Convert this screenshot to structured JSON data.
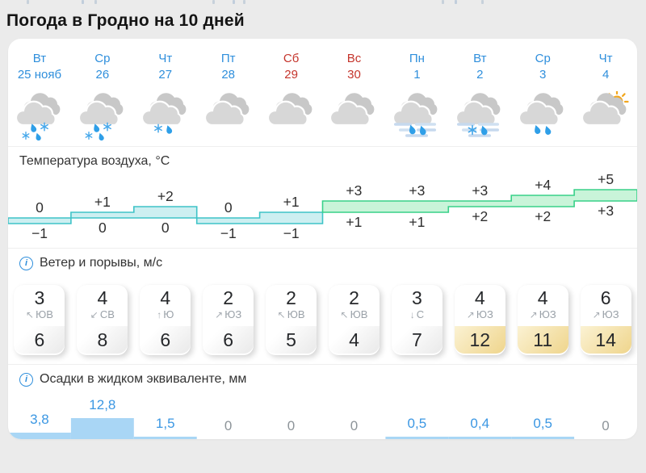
{
  "page": {
    "title": "Погода в Гродно на 10 дней"
  },
  "ui": {
    "info_glyph": "i"
  },
  "columns": [
    {
      "day": "Вт",
      "date": "25 нояб",
      "weekend": false,
      "icon": "cloud-rain-snow"
    },
    {
      "day": "Ср",
      "date": "26",
      "weekend": false,
      "icon": "cloud-rain-snow"
    },
    {
      "day": "Чт",
      "date": "27",
      "weekend": false,
      "icon": "cloud-snow-rain-light"
    },
    {
      "day": "Пт",
      "date": "28",
      "weekend": false,
      "icon": "cloudy"
    },
    {
      "day": "Сб",
      "date": "29",
      "weekend": true,
      "icon": "cloudy"
    },
    {
      "day": "Вс",
      "date": "30",
      "weekend": true,
      "icon": "cloudy"
    },
    {
      "day": "Пн",
      "date": "1",
      "weekend": false,
      "icon": "cloud-rain-fog"
    },
    {
      "day": "Вт",
      "date": "2",
      "weekend": false,
      "icon": "cloud-sleet-fog"
    },
    {
      "day": "Ср",
      "date": "3",
      "weekend": false,
      "icon": "cloud-rain"
    },
    {
      "day": "Чт",
      "date": "4",
      "weekend": false,
      "icon": "cloud-sun"
    }
  ],
  "sections": {
    "temperature": {
      "title": "Температура воздуха, °C"
    },
    "wind": {
      "title": "Ветер и порывы, м/с"
    },
    "precipitation": {
      "title": "Осадки в жидком эквиваленте, мм"
    }
  },
  "chart_data": [
    {
      "type": "area",
      "name": "temperature-range",
      "title": "Температура воздуха, °C",
      "categories": [
        "Вт 25 нояб",
        "Ср 26",
        "Чт 27",
        "Пт 28",
        "Сб 29",
        "Вс 30",
        "Пн 1",
        "Вт 2",
        "Ср 3",
        "Чт 4"
      ],
      "series": [
        {
          "name": "max",
          "values": [
            0,
            1,
            2,
            0,
            1,
            3,
            3,
            3,
            4,
            5
          ],
          "labels": [
            "0",
            "+1",
            "+2",
            "0",
            "+1",
            "+3",
            "+3",
            "+3",
            "+4",
            "+5"
          ]
        },
        {
          "name": "min",
          "values": [
            -1,
            0,
            0,
            -1,
            -1,
            1,
            1,
            2,
            2,
            3
          ],
          "labels": [
            "−1",
            "0",
            "0",
            "−1",
            "−1",
            "+1",
            "+1",
            "+2",
            "+2",
            "+3"
          ]
        }
      ],
      "ylim": [
        -1,
        5
      ],
      "band_colors": {
        "cold_fill": "#cdeff1",
        "cold_stroke": "#3ec3c7",
        "warm_fill": "#c9f4d9",
        "warm_stroke": "#38d189",
        "split_index": 5
      }
    },
    {
      "type": "table",
      "name": "wind-gusts",
      "title": "Ветер и порывы, м/с",
      "rows": {
        "speed": [
          3,
          4,
          4,
          2,
          2,
          2,
          3,
          4,
          4,
          6
        ],
        "direction": [
          "ЮВ",
          "СВ",
          "Ю",
          "ЮЗ",
          "ЮВ",
          "ЮВ",
          "С",
          "ЮЗ",
          "ЮЗ",
          "ЮЗ"
        ],
        "direction_arrows": [
          "↖",
          "↙",
          "↑",
          "↗",
          "↖",
          "↖",
          "↓",
          "↗",
          "↗",
          "↗"
        ],
        "gusts": [
          6,
          8,
          6,
          6,
          5,
          4,
          7,
          12,
          11,
          14
        ],
        "gust_highlighted": [
          false,
          false,
          false,
          false,
          false,
          false,
          false,
          true,
          true,
          true
        ]
      }
    },
    {
      "type": "bar",
      "name": "precipitation",
      "title": "Осадки в жидком эквиваленте, мм",
      "values": [
        3.8,
        12.8,
        1.5,
        0,
        0,
        0,
        0.5,
        0.4,
        0.5,
        0
      ],
      "labels": [
        "3,8",
        "12,8",
        "1,5",
        "0",
        "0",
        "0",
        "0,5",
        "0,4",
        "0,5",
        "0"
      ],
      "bar_color": "#a9d6f5"
    }
  ],
  "colors": {
    "weekday_text": "#2f8fdc",
    "weekend_text": "#c5352c",
    "precip_value": "#3b97e3",
    "precip_zero": "#8d9499",
    "gust_highlight": "#efd58c",
    "info_icon": "#2f8fdc"
  }
}
